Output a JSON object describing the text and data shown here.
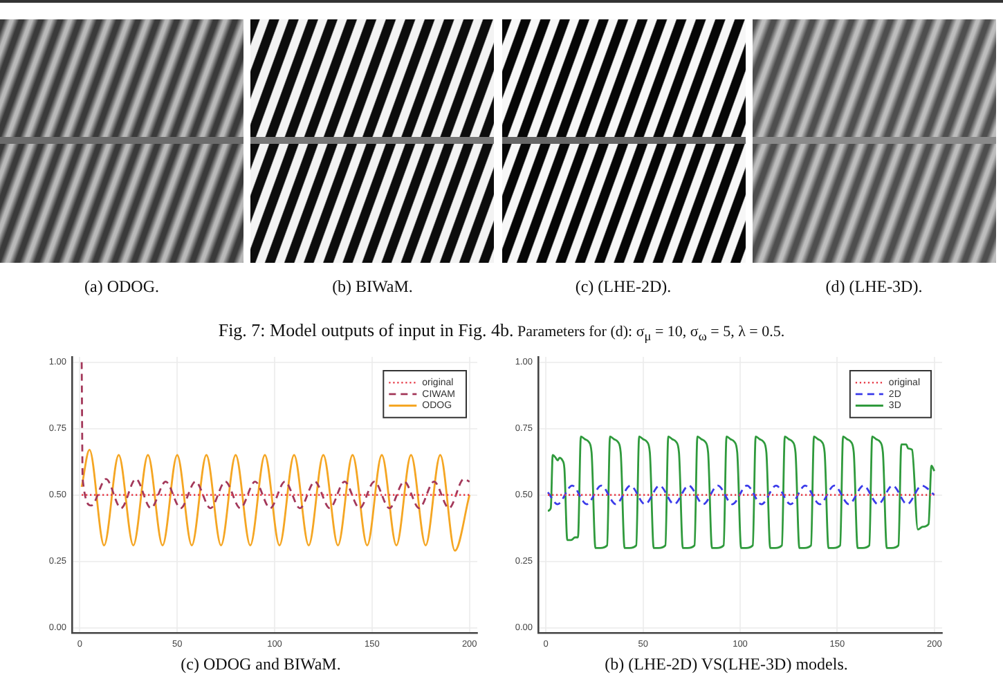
{
  "chart_data": [
    {
      "type": "other",
      "title": "Fig. 7: Model outputs of input in Fig. 4b.",
      "subtitle": "Parameters for (d): σ$_{μ}$ = 10, σ$_{ω}$ = 5, λ = 0.5.",
      "annotations": [
        "(a) ODOG.",
        "(b) BIWaM.",
        "(c) (LHE-2D).",
        "(d) (LHE-3D)."
      ]
    },
    {
      "type": "line",
      "title": "(c) ODOG and BIWaM.",
      "xlim": [
        -4,
        204
      ],
      "xticks": [
        0,
        50,
        100,
        150,
        200
      ],
      "ylim": [
        -0.02,
        1.02
      ],
      "yticks": [
        {
          "value": 0,
          "label": "0.00"
        },
        {
          "value": 0.25,
          "label": "0.25"
        },
        {
          "value": 0.5,
          "label": "0.50"
        },
        {
          "value": 0.75,
          "label": "0.75"
        },
        {
          "value": 1,
          "label": "1.00"
        }
      ],
      "grid": true,
      "legend": "top right",
      "series": [
        {
          "name": "original",
          "color": "#e8414e",
          "line_style": "dotted",
          "x": [
            1,
            200
          ],
          "values": [
            0.5,
            0.5
          ]
        },
        {
          "name": "CIWAM",
          "color": "#a3385a",
          "line_style": "dashed",
          "x": [
            1,
            1.5,
            5.9,
            13.5,
            21.2,
            28.8,
            36.5,
            44.1,
            51.8,
            59.4,
            67.1,
            74.7,
            82.4,
            90,
            97.7,
            105.3,
            113,
            120.6,
            128.3,
            135.9,
            143.6,
            151.2,
            158.9,
            166.5,
            174.2,
            181.8,
            189.5,
            197.1,
            200
          ],
          "values": [
            1.0,
            0.56,
            0.46,
            0.56,
            0.45,
            0.56,
            0.45,
            0.55,
            0.45,
            0.55,
            0.45,
            0.55,
            0.45,
            0.55,
            0.45,
            0.55,
            0.45,
            0.55,
            0.45,
            0.55,
            0.45,
            0.55,
            0.45,
            0.55,
            0.45,
            0.55,
            0.45,
            0.56,
            0.55
          ]
        },
        {
          "name": "ODOG",
          "color": "#f5a623",
          "line_style": "solid",
          "x": [
            1,
            5,
            12.5,
            20,
            27.5,
            35,
            42.5,
            50,
            57.5,
            65,
            72.5,
            80,
            87.5,
            95,
            102.5,
            110,
            117.5,
            125,
            132.5,
            140,
            147.5,
            155,
            162.5,
            170,
            177.5,
            185,
            192.5,
            200
          ],
          "values": [
            0.53,
            0.67,
            0.31,
            0.65,
            0.31,
            0.65,
            0.31,
            0.65,
            0.31,
            0.65,
            0.31,
            0.65,
            0.31,
            0.65,
            0.31,
            0.65,
            0.31,
            0.65,
            0.31,
            0.65,
            0.31,
            0.65,
            0.31,
            0.65,
            0.31,
            0.65,
            0.29,
            0.5
          ]
        }
      ]
    },
    {
      "type": "line",
      "title": "(b) (LHE-2D) VS(LHE-3D) models.",
      "xlim": [
        -4,
        204
      ],
      "xticks": [
        0,
        50,
        100,
        150,
        200
      ],
      "ylim": [
        -0.02,
        1.02
      ],
      "yticks": [
        {
          "value": 0,
          "label": "0.00"
        },
        {
          "value": 0.25,
          "label": "0.25"
        },
        {
          "value": 0.5,
          "label": "0.50"
        },
        {
          "value": 0.75,
          "label": "0.75"
        },
        {
          "value": 1,
          "label": "1.00"
        }
      ],
      "grid": true,
      "legend": "top right",
      "series": [
        {
          "name": "original",
          "color": "#e8414e",
          "line_style": "dotted",
          "x": [
            1,
            200
          ],
          "values": [
            0.5,
            0.5
          ]
        },
        {
          "name": "2D",
          "color": "#3b3bea",
          "line_style": "dashed",
          "x": [
            1,
            6,
            13.5,
            21,
            28.5,
            36,
            43.5,
            51,
            58.5,
            66,
            73.5,
            81,
            88.5,
            96,
            103.5,
            111,
            118.5,
            126,
            133.5,
            141,
            148.5,
            156,
            163.5,
            171,
            178.5,
            186,
            193.5,
            200
          ],
          "values": [
            0.51,
            0.465,
            0.535,
            0.465,
            0.535,
            0.465,
            0.535,
            0.465,
            0.535,
            0.465,
            0.535,
            0.465,
            0.535,
            0.465,
            0.535,
            0.465,
            0.535,
            0.465,
            0.535,
            0.465,
            0.535,
            0.465,
            0.535,
            0.465,
            0.535,
            0.465,
            0.535,
            0.5
          ]
        },
        {
          "name": "3D",
          "color": "#2f9a3c",
          "line_style": "solid",
          "x": [
            1,
            2.5,
            3.5,
            5,
            6,
            7,
            8.5,
            9.5,
            11,
            13,
            15,
            16.5,
            18,
            20,
            22,
            23.5,
            25.5,
            28,
            31.5,
            33,
            35,
            37,
            38.5,
            40.5,
            43,
            46.5,
            48,
            50,
            52,
            53.5,
            55.5,
            58,
            61.5,
            63,
            65,
            67,
            68.5,
            70.5,
            73,
            76.5,
            78,
            80,
            82,
            83.5,
            85.5,
            88,
            91.5,
            93,
            95,
            97,
            98.5,
            100.5,
            103,
            106.5,
            108,
            110,
            112,
            113.5,
            115.5,
            118,
            121.5,
            123,
            125,
            127,
            128.5,
            130.5,
            133,
            136.5,
            138,
            140,
            142,
            143.5,
            145.5,
            148,
            151.5,
            153,
            155,
            157,
            158.5,
            160.5,
            163,
            166.5,
            168,
            170,
            172,
            173.5,
            175.5,
            178,
            181.5,
            183,
            185.5,
            186.5,
            188.5,
            191.5,
            194,
            197,
            198.5,
            200
          ],
          "values": [
            0.44,
            0.45,
            0.65,
            0.64,
            0.63,
            0.64,
            0.63,
            0.6,
            0.33,
            0.33,
            0.34,
            0.34,
            0.72,
            0.71,
            0.7,
            0.66,
            0.3,
            0.3,
            0.31,
            0.72,
            0.71,
            0.7,
            0.66,
            0.3,
            0.3,
            0.31,
            0.72,
            0.71,
            0.7,
            0.66,
            0.3,
            0.3,
            0.31,
            0.72,
            0.71,
            0.7,
            0.66,
            0.3,
            0.3,
            0.31,
            0.72,
            0.71,
            0.7,
            0.66,
            0.3,
            0.3,
            0.31,
            0.72,
            0.71,
            0.7,
            0.66,
            0.3,
            0.3,
            0.31,
            0.72,
            0.71,
            0.7,
            0.66,
            0.3,
            0.3,
            0.31,
            0.72,
            0.71,
            0.7,
            0.66,
            0.3,
            0.3,
            0.31,
            0.72,
            0.71,
            0.7,
            0.66,
            0.3,
            0.3,
            0.31,
            0.72,
            0.71,
            0.7,
            0.66,
            0.3,
            0.3,
            0.31,
            0.72,
            0.71,
            0.7,
            0.66,
            0.3,
            0.3,
            0.31,
            0.69,
            0.69,
            0.675,
            0.67,
            0.37,
            0.38,
            0.39,
            0.61,
            0.59
          ]
        }
      ]
    }
  ]
}
